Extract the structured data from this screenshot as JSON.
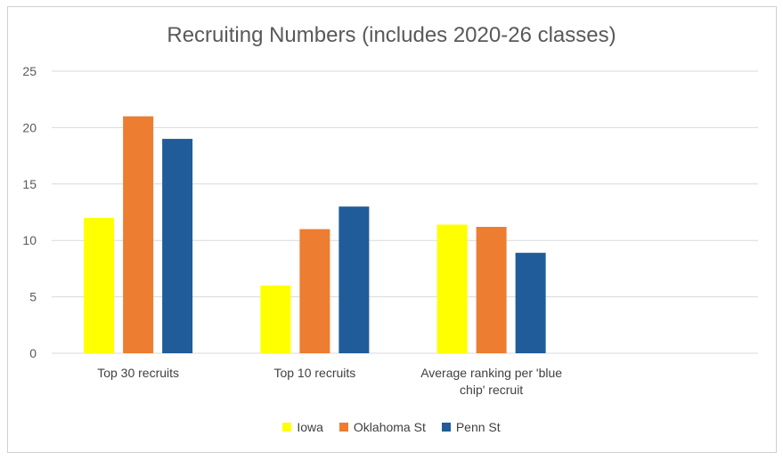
{
  "chart_data": {
    "type": "bar",
    "title": "Recruiting Numbers (includes 2020-26 classes)",
    "categories": [
      "Top 30 recruits",
      "Top 10 recruits",
      "Average ranking per 'blue chip' recruit"
    ],
    "category_lines": [
      [
        "Top 30 recruits"
      ],
      [
        "Top 10 recruits"
      ],
      [
        "Average ranking per 'blue",
        "chip' recruit"
      ]
    ],
    "series": [
      {
        "name": "Iowa",
        "color": "#FFFF00",
        "values": [
          12,
          6,
          11.4
        ]
      },
      {
        "name": "Oklahoma St",
        "color": "#ED7D31",
        "values": [
          21,
          11,
          11.2
        ]
      },
      {
        "name": "Penn St",
        "color": "#1F5C99",
        "values": [
          19,
          13,
          8.9
        ]
      }
    ],
    "ylim": [
      0,
      25
    ],
    "yticks": [
      0,
      5,
      10,
      15,
      20,
      25
    ],
    "grid": true,
    "legend_position": "bottom"
  }
}
